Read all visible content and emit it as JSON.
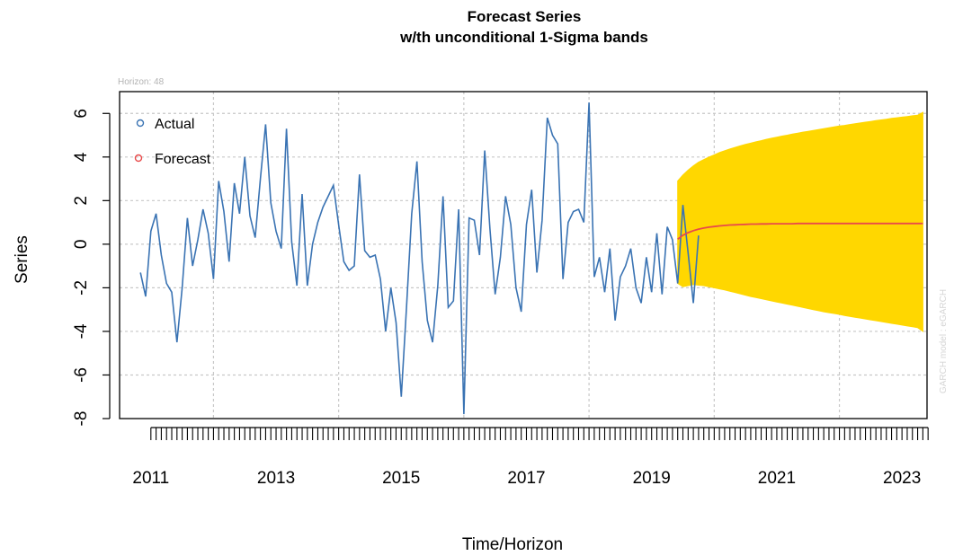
{
  "chart_data": {
    "type": "line",
    "title": "Forecast Series",
    "subtitle": "w/th unconditional 1-Sigma bands",
    "xlabel": "Time/Horizon",
    "ylabel": "Series",
    "horizon_label": "Horizon: 48",
    "side_note": "GARCH model : eGARCH",
    "xlim": [
      2010.5,
      2023.4
    ],
    "ylim": [
      -8,
      7
    ],
    "x_ticks": [
      "2011",
      "2013",
      "2015",
      "2017",
      "2019",
      "2021",
      "2023"
    ],
    "y_ticks": [
      "-8",
      "-6",
      "-4",
      "-2",
      "0",
      "2",
      "4",
      "6"
    ],
    "grid": true,
    "legend_position": "top-left",
    "colors": {
      "actual": "#3a73b3",
      "forecast": "#e84a4a",
      "band": "#ffd700",
      "grid": "#c8c8c8"
    },
    "series": [
      {
        "name": "Actual",
        "x_start": "2010-11",
        "frequency": "monthly",
        "values": [
          -1.3,
          -2.4,
          0.6,
          1.4,
          -0.5,
          -1.8,
          -2.2,
          -4.5,
          -2.0,
          1.2,
          -1.0,
          0.2,
          1.6,
          0.5,
          -1.6,
          2.9,
          1.5,
          -0.8,
          2.8,
          1.4,
          4.0,
          1.3,
          0.3,
          3.0,
          5.5,
          1.9,
          0.6,
          -0.2,
          5.3,
          0.1,
          -1.9,
          2.3,
          -1.9,
          0.0,
          1.0,
          1.7,
          2.2,
          2.7,
          0.9,
          -0.8,
          -1.2,
          -1.0,
          3.2,
          -0.3,
          -0.6,
          -0.5,
          -1.6,
          -4.0,
          -2.0,
          -3.6,
          -7.0,
          -2.9,
          1.4,
          3.8,
          -0.8,
          -3.5,
          -4.5,
          -1.9,
          2.2,
          -2.9,
          -2.6,
          1.6,
          -7.8,
          1.2,
          1.1,
          -0.5,
          4.3,
          0.7,
          -2.3,
          -0.6,
          2.2,
          0.9,
          -2.0,
          -3.1,
          0.9,
          2.5,
          -1.3,
          1.1,
          5.8,
          5.0,
          4.6,
          -1.6,
          1.0,
          1.5,
          1.6,
          1.0,
          6.5,
          -1.5,
          -0.6,
          -2.2,
          -0.2,
          -3.5,
          -1.5,
          -1.0,
          -0.2,
          -2.0,
          -2.7,
          -0.6,
          -2.2,
          0.5,
          -2.3,
          0.8,
          0.2,
          -1.8,
          1.8,
          -0.4,
          -2.7,
          0.4
        ]
      },
      {
        "name": "Forecast",
        "x_start": "2019-06",
        "frequency": "monthly",
        "horizon": 48,
        "values": [
          0.23,
          0.41,
          0.53,
          0.62,
          0.69,
          0.74,
          0.78,
          0.81,
          0.84,
          0.86,
          0.88,
          0.89,
          0.9,
          0.91,
          0.92,
          0.92,
          0.93,
          0.93,
          0.94,
          0.94,
          0.94,
          0.94,
          0.94,
          0.95,
          0.95,
          0.95,
          0.95,
          0.95,
          0.95,
          0.95,
          0.95,
          0.95,
          0.95,
          0.95,
          0.95,
          0.95,
          0.95,
          0.95,
          0.95,
          0.95,
          0.95,
          0.95,
          0.95,
          0.95,
          0.95,
          0.95,
          0.95,
          0.95
        ],
        "band_upper": [
          2.9,
          3.17,
          3.4,
          3.59,
          3.76,
          3.88,
          4.0,
          4.1,
          4.2,
          4.29,
          4.37,
          4.44,
          4.51,
          4.58,
          4.64,
          4.7,
          4.75,
          4.81,
          4.86,
          4.91,
          4.96,
          5.0,
          5.05,
          5.09,
          5.14,
          5.18,
          5.22,
          5.26,
          5.3,
          5.34,
          5.38,
          5.42,
          5.45,
          5.49,
          5.53,
          5.56,
          5.6,
          5.63,
          5.67,
          5.7,
          5.73,
          5.77,
          5.8,
          5.83,
          5.86,
          5.89,
          5.92,
          6.05
        ],
        "band_lower": [
          -1.8,
          -1.95,
          -1.9,
          -1.85,
          -1.88,
          -1.9,
          -1.95,
          -2.0,
          -2.05,
          -2.1,
          -2.16,
          -2.22,
          -2.28,
          -2.34,
          -2.4,
          -2.45,
          -2.5,
          -2.55,
          -2.6,
          -2.65,
          -2.7,
          -2.75,
          -2.8,
          -2.85,
          -2.9,
          -2.95,
          -3.0,
          -3.05,
          -3.1,
          -3.14,
          -3.18,
          -3.22,
          -3.27,
          -3.31,
          -3.35,
          -3.39,
          -3.43,
          -3.47,
          -3.51,
          -3.55,
          -3.59,
          -3.63,
          -3.67,
          -3.71,
          -3.75,
          -3.79,
          -3.83,
          -4.0
        ]
      }
    ]
  }
}
